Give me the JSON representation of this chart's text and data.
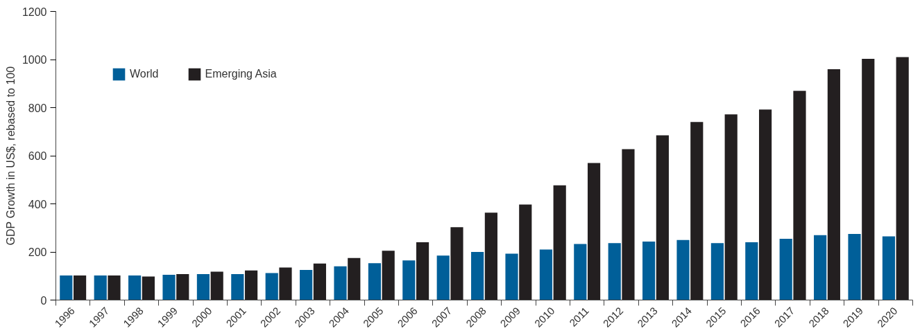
{
  "chart_data": {
    "type": "bar",
    "ylabel": "GDP Growth in US$, rebased to 100",
    "categories": [
      "1996",
      "1997",
      "1998",
      "1999",
      "2000",
      "2001",
      "2002",
      "2003",
      "2004",
      "2005",
      "2006",
      "2007",
      "2008",
      "2009",
      "2010",
      "2011",
      "2012",
      "2013",
      "2014",
      "2015",
      "2016",
      "2017",
      "2018",
      "2019",
      "2020"
    ],
    "series": [
      {
        "name": "World",
        "color": "#005f99",
        "values": [
          102,
          102,
          102,
          105,
          108,
          108,
          112,
          125,
          140,
          153,
          165,
          185,
          200,
          193,
          210,
          233,
          237,
          243,
          250,
          237,
          240,
          255,
          270,
          275,
          265
        ]
      },
      {
        "name": "Emerging Asia",
        "color": "#231f20",
        "values": [
          102,
          102,
          98,
          108,
          118,
          123,
          135,
          152,
          175,
          205,
          240,
          303,
          363,
          397,
          477,
          570,
          627,
          685,
          740,
          772,
          792,
          870,
          960,
          1003,
          1010
        ]
      }
    ],
    "ylim": [
      0,
      1200
    ],
    "yticks": [
      0,
      200,
      400,
      600,
      800,
      1000,
      1200
    ],
    "grid": false,
    "legend": "top left"
  }
}
